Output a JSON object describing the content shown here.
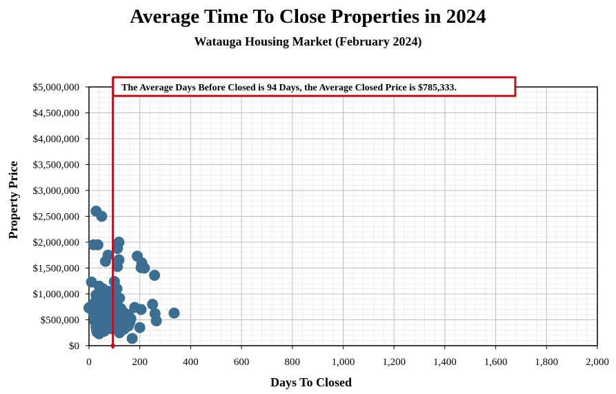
{
  "chart_data": {
    "type": "scatter",
    "title": "Average Time To Close Properties in 2024",
    "subtitle": "Watauga Housing Market (February 2024)",
    "xlabel": "Days To Closed",
    "ylabel": "Property Price",
    "xlim": [
      0,
      2000
    ],
    "ylim": [
      0,
      5000000
    ],
    "x_ticks": [
      0,
      200,
      400,
      600,
      800,
      1000,
      1200,
      1400,
      1600,
      1800,
      2000
    ],
    "x_tick_labels": [
      "0",
      "200",
      "400",
      "600",
      "800",
      "1,000",
      "1,200",
      "1,400",
      "1,600",
      "1,800",
      "2,000"
    ],
    "y_ticks": [
      0,
      500000,
      1000000,
      1500000,
      2000000,
      2500000,
      3000000,
      3500000,
      4000000,
      4500000,
      5000000
    ],
    "y_tick_labels": [
      "$0",
      "$500,000",
      "$1,000,000",
      "$1,500,000",
      "$2,000,000",
      "$2,500,000",
      "$3,000,000",
      "$3,500,000",
      "$4,000,000",
      "$4,500,000",
      "$5,000,000"
    ],
    "grid": true,
    "average_line": {
      "x": 94,
      "label": "The Average Days Before Closed is 94 Days, the Average Closed Price is $785,333."
    },
    "marker_color": "#3c6e91",
    "average_color": "#b5121b",
    "points": [
      [
        28,
        2600000
      ],
      [
        50,
        2500000
      ],
      [
        18,
        1950000
      ],
      [
        35,
        1950000
      ],
      [
        118,
        2000000
      ],
      [
        112,
        1880000
      ],
      [
        75,
        1750000
      ],
      [
        65,
        1630000
      ],
      [
        118,
        1660000
      ],
      [
        112,
        1530000
      ],
      [
        190,
        1730000
      ],
      [
        208,
        1600000
      ],
      [
        205,
        1510000
      ],
      [
        218,
        1500000
      ],
      [
        258,
        1360000
      ],
      [
        10,
        1230000
      ],
      [
        40,
        1150000
      ],
      [
        55,
        1100000
      ],
      [
        100,
        1240000
      ],
      [
        110,
        1100000
      ],
      [
        80,
        1050000
      ],
      [
        120,
        920000
      ],
      [
        25,
        850000
      ],
      [
        0,
        730000
      ],
      [
        12,
        780000
      ],
      [
        35,
        820000
      ],
      [
        60,
        900000
      ],
      [
        88,
        920000
      ],
      [
        95,
        780000
      ],
      [
        250,
        800000
      ],
      [
        180,
        740000
      ],
      [
        205,
        700000
      ],
      [
        260,
        620000
      ],
      [
        335,
        630000
      ],
      [
        265,
        480000
      ],
      [
        155,
        600000
      ],
      [
        165,
        520000
      ],
      [
        140,
        470000
      ],
      [
        200,
        350000
      ],
      [
        170,
        140000
      ],
      [
        120,
        250000
      ],
      [
        30,
        300000
      ],
      [
        45,
        420000
      ],
      [
        55,
        500000
      ],
      [
        70,
        600000
      ],
      [
        85,
        650000
      ],
      [
        100,
        700000
      ],
      [
        110,
        550000
      ],
      [
        130,
        500000
      ],
      [
        22,
        480000
      ],
      [
        28,
        360000
      ],
      [
        32,
        260000
      ],
      [
        40,
        230000
      ],
      [
        50,
        320000
      ],
      [
        60,
        280000
      ],
      [
        75,
        400000
      ],
      [
        90,
        330000
      ],
      [
        100,
        460000
      ],
      [
        120,
        380000
      ],
      [
        140,
        420000
      ],
      [
        150,
        600000
      ],
      [
        160,
        450000
      ],
      [
        42,
        700000
      ],
      [
        58,
        680000
      ],
      [
        68,
        760000
      ],
      [
        82,
        860000
      ],
      [
        108,
        840000
      ],
      [
        125,
        720000
      ],
      [
        135,
        650000
      ],
      [
        18,
        620000
      ],
      [
        25,
        560000
      ],
      [
        38,
        600000
      ],
      [
        48,
        950000
      ],
      [
        70,
        500000
      ],
      [
        78,
        450000
      ],
      [
        98,
        580000
      ],
      [
        115,
        620000
      ],
      [
        130,
        560000
      ],
      [
        145,
        520000
      ],
      [
        160,
        540000
      ],
      [
        95,
        1000000
      ],
      [
        62,
        420000
      ],
      [
        36,
        520000
      ],
      [
        85,
        520000
      ],
      [
        112,
        470000
      ],
      [
        52,
        760000
      ],
      [
        74,
        800000
      ],
      [
        26,
        700000
      ],
      [
        44,
        620000
      ],
      [
        66,
        560000
      ],
      [
        93,
        420000
      ],
      [
        104,
        350000
      ],
      [
        138,
        320000
      ],
      [
        155,
        380000
      ],
      [
        30,
        420000
      ],
      [
        118,
        600000
      ],
      [
        28,
        980000
      ],
      [
        50,
        1050000
      ],
      [
        80,
        950000
      ],
      [
        102,
        980000
      ]
    ]
  }
}
